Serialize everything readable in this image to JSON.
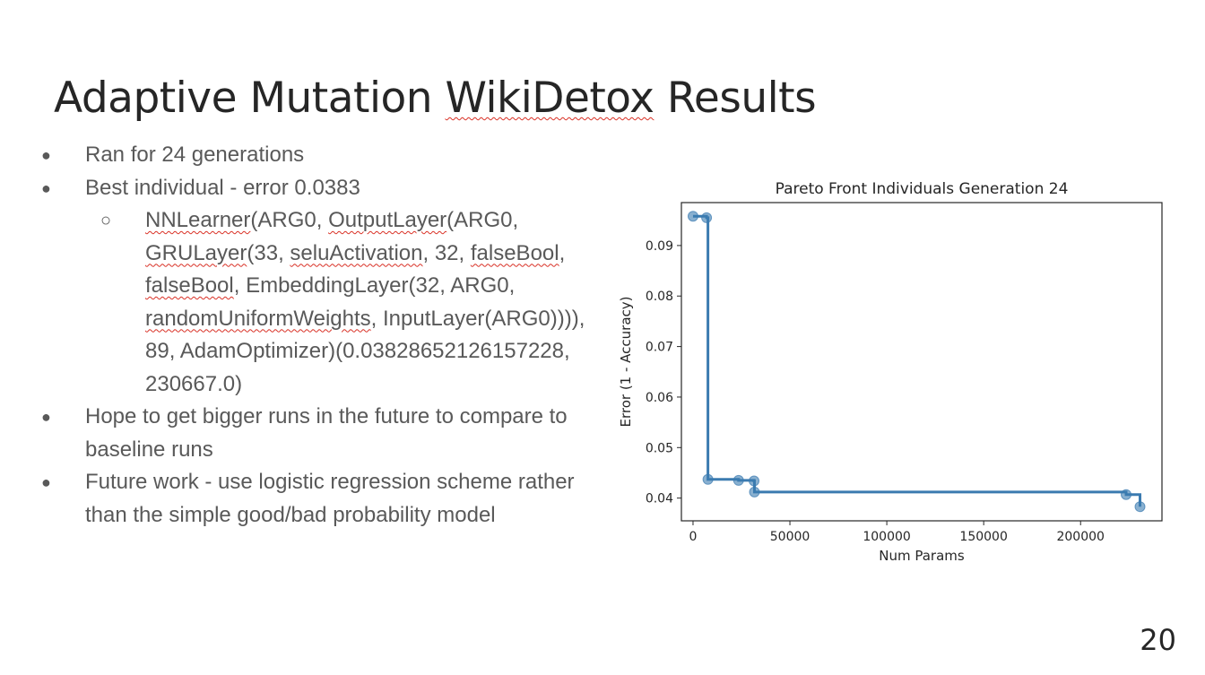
{
  "slide": {
    "title_part1": "Adaptive Mutation ",
    "title_part2": "WikiDetox",
    "title_part3": " Results",
    "page_number": "20"
  },
  "bullets": {
    "b1": "Ran for 24 generations",
    "b2": "Best individual - error 0.0383",
    "sub": {
      "t1": "NNLearner",
      "t2": "(ARG0, ",
      "t3": "OutputLayer",
      "t4": "(ARG0, ",
      "t5": "GRULayer",
      "t6": "(33, ",
      "t7": "seluActivation",
      "t8": ", 32, ",
      "t9": "falseBool",
      "t10": ", ",
      "t11": "falseBool",
      "t12": ", EmbeddingLayer(32, ARG0, ",
      "t13": "randomUniformWeights",
      "t14": ", InputLayer(ARG0)))), 89, AdamOptimizer)(0.03828652126157228, 230667.0)"
    },
    "b3": "Hope to get bigger runs in the future to compare to baseline runs",
    "b4": "Future work - use logistic regression scheme rather than the simple good/bad probability model"
  },
  "chart_data": {
    "type": "line",
    "title": "Pareto Front Individuals Generation 24",
    "xlabel": "Num Params",
    "ylabel": "Error (1 - Accuracy)",
    "xlim": [
      -6000,
      242000
    ],
    "ylim": [
      0.0355,
      0.0985
    ],
    "xticks": [
      0,
      50000,
      100000,
      150000,
      200000
    ],
    "yticks": [
      0.04,
      0.05,
      0.06,
      0.07,
      0.08,
      0.09
    ],
    "color": "#3b7bb0",
    "points": [
      {
        "x": 0,
        "y": 0.0958
      },
      {
        "x": 7000,
        "y": 0.0955
      },
      {
        "x": 7700,
        "y": 0.0437
      },
      {
        "x": 23500,
        "y": 0.0435
      },
      {
        "x": 31500,
        "y": 0.0434
      },
      {
        "x": 31700,
        "y": 0.0412
      },
      {
        "x": 223500,
        "y": 0.0407
      },
      {
        "x": 230667,
        "y": 0.0383
      }
    ]
  }
}
